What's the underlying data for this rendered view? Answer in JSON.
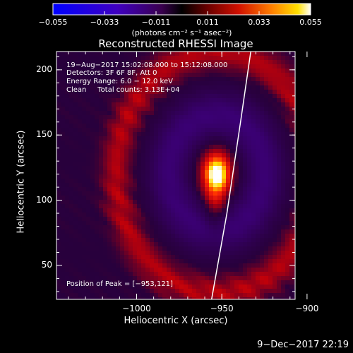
{
  "chart_data": {
    "type": "heatmap",
    "title": "Reconstructed RHESSI Image",
    "xlabel": "Heliocentric X (arcsec)",
    "ylabel": "Heliocentric Y (arcsec)",
    "xlim": [
      -1047,
      -907
    ],
    "ylim": [
      24,
      214
    ],
    "x_ticks": [
      -1000,
      -950,
      -900
    ],
    "y_ticks": [
      50,
      100,
      150,
      200
    ],
    "colorbar": {
      "min": -0.055,
      "max": 0.055,
      "ticks": [
        "−0.055",
        "−0.033",
        "−0.011",
        "0.011",
        "0.033",
        "0.055"
      ],
      "unit_text": "(photons cm⁻² s⁻¹ asec⁻²)"
    },
    "info_lines": [
      "19−Aug−2017 15:02:08.000 to 15:12:08.000",
      "Detectors: 3F 6F 8F, Att 0",
      "Energy Range: 6.0 − 12.0 keV",
      "Clean     Total counts: 3.13E+04"
    ],
    "peak_label": "Position of Peak = [−953,121]",
    "peak": {
      "x": -953,
      "y": 121,
      "value": 0.055
    },
    "limb_line": [
      {
        "x": -956,
        "y": 24
      },
      {
        "x": -947,
        "y": 90
      },
      {
        "x": -939,
        "y": 160
      },
      {
        "x": -933,
        "y": 214
      }
    ]
  },
  "footer": {
    "date": "9−Dec−2017 22:19"
  }
}
